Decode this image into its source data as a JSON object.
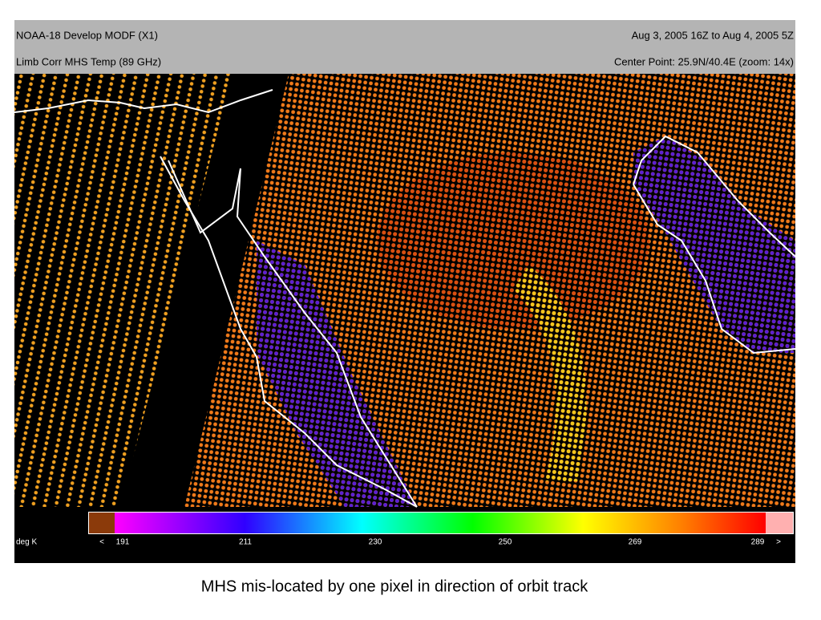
{
  "header": {
    "title": "NOAA-18 Develop MODF (X1)",
    "time_range": "Aug 3, 2005  16Z to Aug 4, 2005  5Z",
    "product": "Limb Corr MHS Temp (89 GHz)",
    "center_point": "Center Point: 25.9N/40.4E  (zoom: 14x)"
  },
  "colorbar": {
    "unit": "deg K",
    "labels": [
      "<",
      "191",
      "211",
      "230",
      "250",
      "269",
      "289",
      ">"
    ]
  },
  "caption": "MHS  mis-located by one pixel in direction of orbit track"
}
